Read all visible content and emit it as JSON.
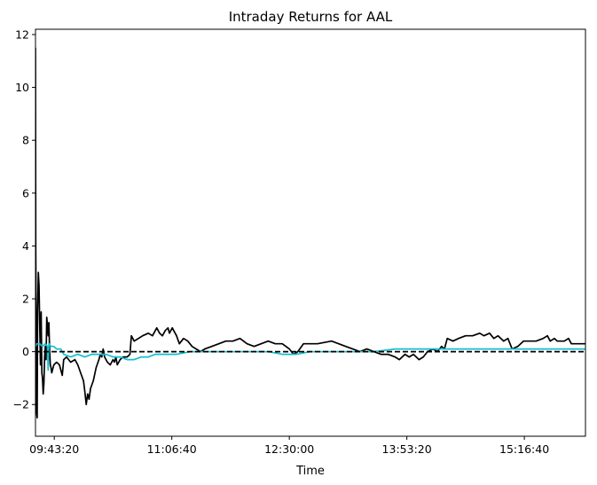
{
  "chart_data": {
    "type": "line",
    "title": "Intraday Returns for AAL",
    "xlabel": "Time",
    "ylabel": "",
    "x_format": "HH:MM:SS",
    "xlim": [
      "09:30:00",
      "16:00:00"
    ],
    "ylim": [
      -3.2,
      12.2
    ],
    "x_ticks": [
      "09:43:20",
      "11:06:40",
      "12:30:00",
      "13:53:20",
      "15:16:40"
    ],
    "y_ticks": [
      -2,
      0,
      2,
      4,
      6,
      8,
      10,
      12
    ],
    "grid": false,
    "legend": "none",
    "colors": {
      "series_1": "#000000",
      "series_2": "#17becf",
      "baseline": "#000000"
    },
    "baseline": 0,
    "series": [
      {
        "color": "#000000",
        "points": [
          [
            "09:30:00",
            11.5
          ],
          [
            "09:30:10",
            4.0
          ],
          [
            "09:30:30",
            0.5
          ],
          [
            "09:30:50",
            -2.3
          ],
          [
            "09:31:10",
            -2.5
          ],
          [
            "09:31:30",
            1.5
          ],
          [
            "09:32:00",
            3.0
          ],
          [
            "09:32:30",
            2.5
          ],
          [
            "09:33:00",
            1.0
          ],
          [
            "09:33:30",
            -0.5
          ],
          [
            "09:34:00",
            1.5
          ],
          [
            "09:34:30",
            -0.8
          ],
          [
            "09:35:00",
            -1.0
          ],
          [
            "09:35:30",
            -1.6
          ],
          [
            "09:36:00",
            -1.2
          ],
          [
            "09:36:30",
            -0.2
          ],
          [
            "09:37:00",
            0.2
          ],
          [
            "09:37:30",
            -0.3
          ],
          [
            "09:38:00",
            1.3
          ],
          [
            "09:38:30",
            1.0
          ],
          [
            "09:39:00",
            0.6
          ],
          [
            "09:39:30",
            1.1
          ],
          [
            "09:40:00",
            0.1
          ],
          [
            "09:40:30",
            -0.5
          ],
          [
            "09:41:00",
            -0.6
          ],
          [
            "09:41:30",
            -0.8
          ],
          [
            "09:42:00",
            -0.7
          ],
          [
            "09:43:00",
            -0.5
          ],
          [
            "09:45:00",
            -0.4
          ],
          [
            "09:47:00",
            -0.5
          ],
          [
            "09:49:00",
            -0.9
          ],
          [
            "09:50:00",
            -0.3
          ],
          [
            "09:52:00",
            -0.2
          ],
          [
            "09:55:00",
            -0.4
          ],
          [
            "09:58:00",
            -0.3
          ],
          [
            "10:00:00",
            -0.5
          ],
          [
            "10:02:00",
            -0.8
          ],
          [
            "10:04:00",
            -1.1
          ],
          [
            "10:05:00",
            -1.5
          ],
          [
            "10:06:00",
            -2.0
          ],
          [
            "10:07:00",
            -1.6
          ],
          [
            "10:08:00",
            -1.8
          ],
          [
            "10:09:00",
            -1.4
          ],
          [
            "10:11:00",
            -1.1
          ],
          [
            "10:13:00",
            -0.6
          ],
          [
            "10:15:00",
            -0.3
          ],
          [
            "10:16:00",
            -0.1
          ],
          [
            "10:17:00",
            -0.2
          ],
          [
            "10:18:00",
            0.1
          ],
          [
            "10:19:00",
            -0.2
          ],
          [
            "10:21:00",
            -0.4
          ],
          [
            "10:23:00",
            -0.5
          ],
          [
            "10:25:00",
            -0.3
          ],
          [
            "10:26:00",
            -0.4
          ],
          [
            "10:27:00",
            -0.2
          ],
          [
            "10:28:00",
            -0.5
          ],
          [
            "10:30:00",
            -0.3
          ],
          [
            "10:32:00",
            -0.2
          ],
          [
            "10:35:00",
            -0.2
          ],
          [
            "10:37:00",
            -0.1
          ],
          [
            "10:38:00",
            0.6
          ],
          [
            "10:40:00",
            0.4
          ],
          [
            "10:43:00",
            0.5
          ],
          [
            "10:46:00",
            0.6
          ],
          [
            "10:50:00",
            0.7
          ],
          [
            "10:53:00",
            0.6
          ],
          [
            "10:56:00",
            0.9
          ],
          [
            "10:58:00",
            0.7
          ],
          [
            "11:00:00",
            0.6
          ],
          [
            "11:02:00",
            0.8
          ],
          [
            "11:04:00",
            0.9
          ],
          [
            "11:05:00",
            0.7
          ],
          [
            "11:07:00",
            0.9
          ],
          [
            "11:10:00",
            0.6
          ],
          [
            "11:12:00",
            0.3
          ],
          [
            "11:15:00",
            0.5
          ],
          [
            "11:18:00",
            0.4
          ],
          [
            "11:21:00",
            0.2
          ],
          [
            "11:24:00",
            0.1
          ],
          [
            "11:27:00",
            0.0
          ],
          [
            "11:30:00",
            0.1
          ],
          [
            "11:35:00",
            0.2
          ],
          [
            "11:40:00",
            0.3
          ],
          [
            "11:45:00",
            0.4
          ],
          [
            "11:50:00",
            0.4
          ],
          [
            "11:55:00",
            0.5
          ],
          [
            "12:00:00",
            0.3
          ],
          [
            "12:05:00",
            0.2
          ],
          [
            "12:10:00",
            0.3
          ],
          [
            "12:15:00",
            0.4
          ],
          [
            "12:20:00",
            0.3
          ],
          [
            "12:25:00",
            0.3
          ],
          [
            "12:30:00",
            0.1
          ],
          [
            "12:33:00",
            -0.1
          ],
          [
            "12:36:00",
            0.0
          ],
          [
            "12:40:00",
            0.3
          ],
          [
            "12:50:00",
            0.3
          ],
          [
            "13:00:00",
            0.4
          ],
          [
            "13:05:00",
            0.3
          ],
          [
            "13:10:00",
            0.2
          ],
          [
            "13:15:00",
            0.1
          ],
          [
            "13:20:00",
            0.0
          ],
          [
            "13:25:00",
            0.1
          ],
          [
            "13:30:00",
            0.0
          ],
          [
            "13:35:00",
            -0.1
          ],
          [
            "13:40:00",
            -0.1
          ],
          [
            "13:45:00",
            -0.2
          ],
          [
            "13:48:00",
            -0.3
          ],
          [
            "13:52:00",
            -0.1
          ],
          [
            "13:55:00",
            -0.2
          ],
          [
            "13:58:00",
            -0.1
          ],
          [
            "14:02:00",
            -0.3
          ],
          [
            "14:05:00",
            -0.2
          ],
          [
            "14:08:00",
            0.0
          ],
          [
            "14:12:00",
            0.1
          ],
          [
            "14:15:00",
            0.0
          ],
          [
            "14:18:00",
            0.2
          ],
          [
            "14:20:00",
            0.1
          ],
          [
            "14:22:00",
            0.5
          ],
          [
            "14:26:00",
            0.4
          ],
          [
            "14:30:00",
            0.5
          ],
          [
            "14:35:00",
            0.6
          ],
          [
            "14:40:00",
            0.6
          ],
          [
            "14:45:00",
            0.7
          ],
          [
            "14:48:00",
            0.6
          ],
          [
            "14:52:00",
            0.7
          ],
          [
            "14:55:00",
            0.5
          ],
          [
            "14:58:00",
            0.6
          ],
          [
            "15:02:00",
            0.4
          ],
          [
            "15:05:00",
            0.5
          ],
          [
            "15:08:00",
            0.1
          ],
          [
            "15:12:00",
            0.2
          ],
          [
            "15:16:00",
            0.4
          ],
          [
            "15:20:00",
            0.4
          ],
          [
            "15:25:00",
            0.4
          ],
          [
            "15:30:00",
            0.5
          ],
          [
            "15:33:00",
            0.6
          ],
          [
            "15:35:00",
            0.4
          ],
          [
            "15:38:00",
            0.5
          ],
          [
            "15:40:00",
            0.4
          ],
          [
            "15:45:00",
            0.4
          ],
          [
            "15:48:00",
            0.5
          ],
          [
            "15:50:00",
            0.3
          ],
          [
            "15:55:00",
            0.3
          ],
          [
            "16:00:00",
            0.3
          ]
        ]
      },
      {
        "color": "#17becf",
        "points": [
          [
            "09:30:00",
            0.2
          ],
          [
            "09:31:00",
            0.3
          ],
          [
            "09:33:00",
            0.3
          ],
          [
            "09:35:00",
            0.2
          ],
          [
            "09:37:00",
            0.3
          ],
          [
            "09:38:30",
            0.2
          ],
          [
            "09:39:00",
            -0.7
          ],
          [
            "09:39:30",
            0.3
          ],
          [
            "09:41:00",
            0.2
          ],
          [
            "09:43:00",
            0.2
          ],
          [
            "09:45:00",
            0.1
          ],
          [
            "09:48:00",
            0.1
          ],
          [
            "09:50:00",
            -0.1
          ],
          [
            "09:55:00",
            -0.2
          ],
          [
            "10:00:00",
            -0.1
          ],
          [
            "10:05:00",
            -0.2
          ],
          [
            "10:10:00",
            -0.1
          ],
          [
            "10:15:00",
            -0.1
          ],
          [
            "10:20:00",
            -0.1
          ],
          [
            "10:25:00",
            -0.2
          ],
          [
            "10:30:00",
            -0.2
          ],
          [
            "10:35:00",
            -0.3
          ],
          [
            "10:40:00",
            -0.3
          ],
          [
            "10:45:00",
            -0.2
          ],
          [
            "10:50:00",
            -0.2
          ],
          [
            "10:55:00",
            -0.1
          ],
          [
            "11:00:00",
            -0.1
          ],
          [
            "11:10:00",
            -0.1
          ],
          [
            "11:20:00",
            0.0
          ],
          [
            "11:30:00",
            0.0
          ],
          [
            "11:45:00",
            0.0
          ],
          [
            "12:00:00",
            0.0
          ],
          [
            "12:15:00",
            0.0
          ],
          [
            "12:25:00",
            -0.1
          ],
          [
            "12:35:00",
            -0.1
          ],
          [
            "12:45:00",
            0.0
          ],
          [
            "13:00:00",
            0.0
          ],
          [
            "13:15:00",
            0.0
          ],
          [
            "13:30:00",
            0.0
          ],
          [
            "13:45:00",
            0.1
          ],
          [
            "14:00:00",
            0.1
          ],
          [
            "14:15:00",
            0.1
          ],
          [
            "14:30:00",
            0.1
          ],
          [
            "14:45:00",
            0.1
          ],
          [
            "15:00:00",
            0.1
          ],
          [
            "15:15:00",
            0.1
          ],
          [
            "15:30:00",
            0.1
          ],
          [
            "15:45:00",
            0.1
          ],
          [
            "16:00:00",
            0.1
          ]
        ]
      }
    ]
  }
}
